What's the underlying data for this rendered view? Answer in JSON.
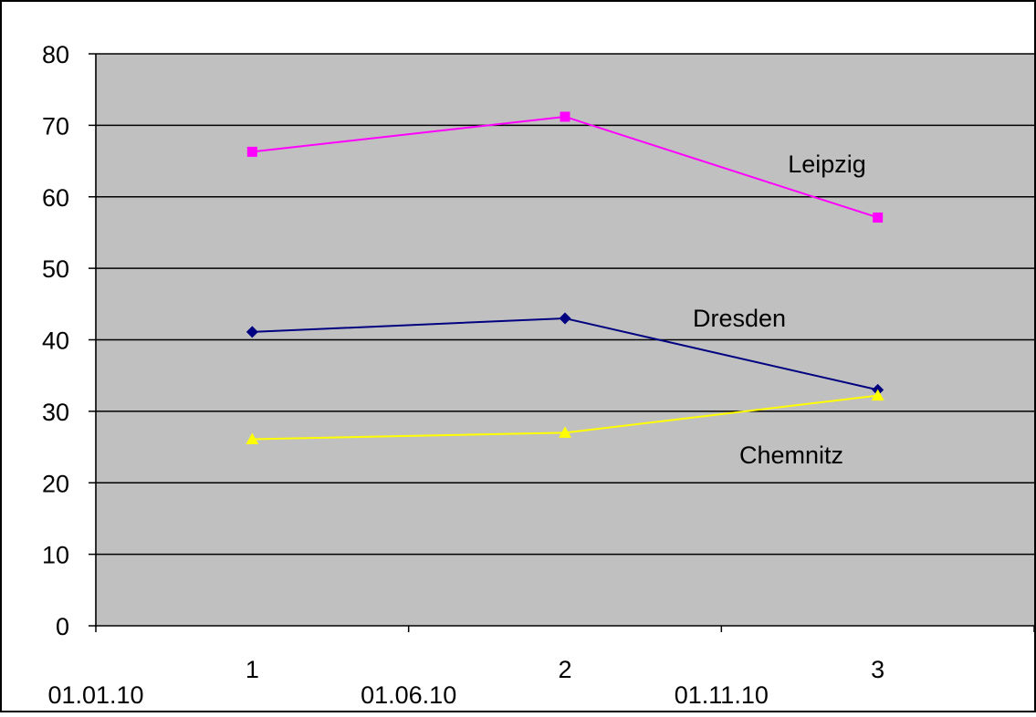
{
  "chart_data": {
    "type": "line",
    "ylim": [
      0,
      80
    ],
    "y_ticks": [
      "0",
      "10",
      "20",
      "30",
      "40",
      "50",
      "60",
      "70",
      "80"
    ],
    "categories": [
      "1",
      "2",
      "3"
    ],
    "x_date_labels": [
      "01.01.10",
      "01.06.10",
      "01.11.10"
    ],
    "grid": true,
    "legend": "none",
    "plot_background": "#c0c0c0",
    "series": [
      {
        "name": "Leipzig",
        "values": [
          66.3,
          71.2,
          57.1
        ],
        "color": "#ff00ff",
        "marker": "square"
      },
      {
        "name": "Dresden",
        "values": [
          41.1,
          43.0,
          33.0
        ],
        "color": "#000080",
        "marker": "diamond"
      },
      {
        "name": "Chemnitz",
        "values": [
          26.1,
          27.0,
          32.2
        ],
        "color": "#ffff00",
        "marker": "triangle"
      }
    ]
  }
}
